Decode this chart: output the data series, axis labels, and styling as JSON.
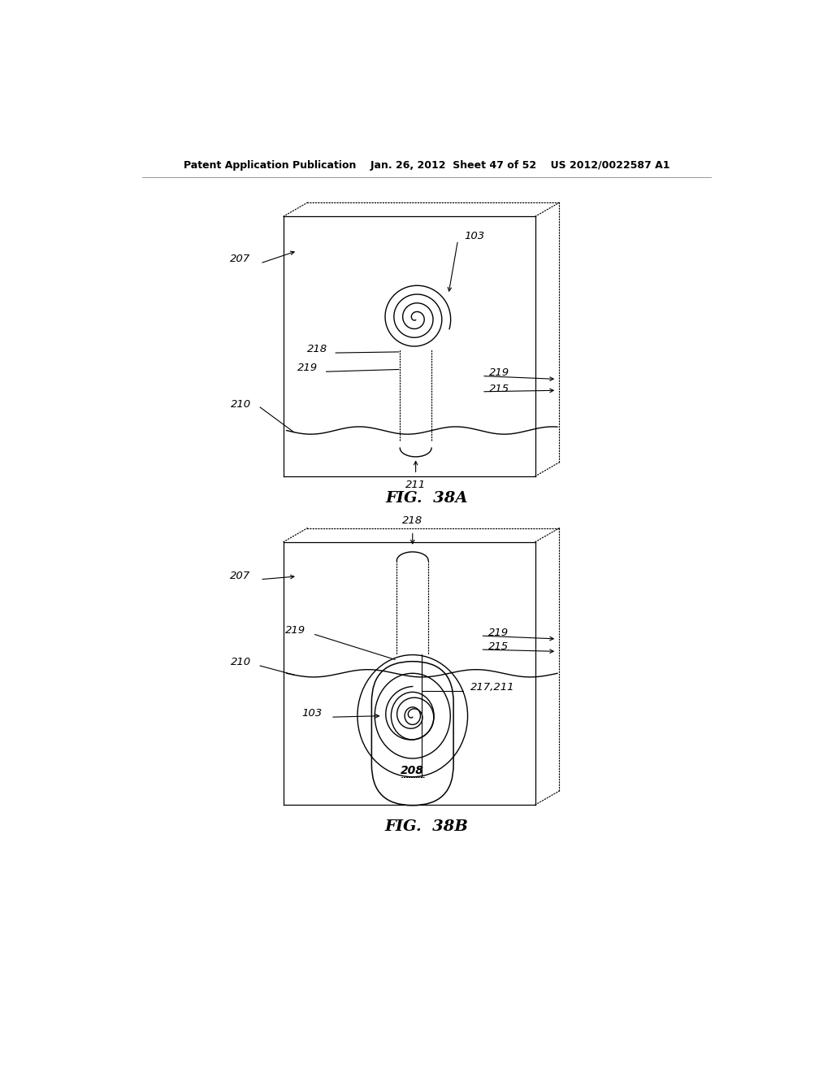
{
  "bg_color": "#ffffff",
  "line_color": "#000000",
  "header_text": "Patent Application Publication    Jan. 26, 2012  Sheet 47 of 52    US 2012/0022587 A1",
  "fig38a_caption": "FIG.  38A",
  "fig38b_caption": "FIG.  38B"
}
